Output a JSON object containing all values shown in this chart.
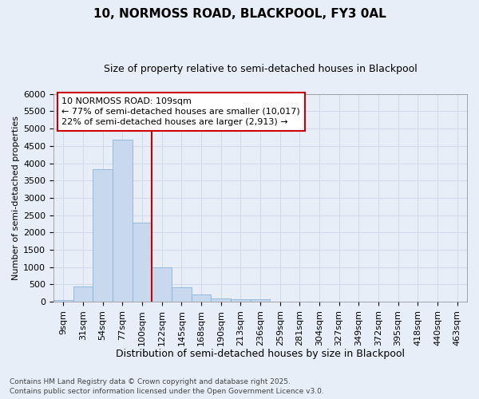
{
  "title1": "10, NORMOSS ROAD, BLACKPOOL, FY3 0AL",
  "title2": "Size of property relative to semi-detached houses in Blackpool",
  "xlabel": "Distribution of semi-detached houses by size in Blackpool",
  "ylabel": "Number of semi-detached properties",
  "categories": [
    "9sqm",
    "31sqm",
    "54sqm",
    "77sqm",
    "100sqm",
    "122sqm",
    "145sqm",
    "168sqm",
    "190sqm",
    "213sqm",
    "236sqm",
    "259sqm",
    "281sqm",
    "304sqm",
    "327sqm",
    "349sqm",
    "372sqm",
    "395sqm",
    "418sqm",
    "440sqm",
    "463sqm"
  ],
  "values": [
    50,
    430,
    3820,
    4670,
    2290,
    990,
    410,
    210,
    90,
    70,
    70,
    0,
    0,
    0,
    0,
    0,
    0,
    0,
    0,
    0,
    0
  ],
  "bar_color": "#c8d8ee",
  "bar_edge_color": "#8ab4d8",
  "grid_color": "#d0daea",
  "background_color": "#e8eef8",
  "vline_color": "#cc0000",
  "annotation_title": "10 NORMOSS ROAD: 109sqm",
  "annotation_line1": "← 77% of semi-detached houses are smaller (10,017)",
  "annotation_line2": "22% of semi-detached houses are larger (2,913) →",
  "annotation_box_color": "#cc0000",
  "footer1": "Contains HM Land Registry data © Crown copyright and database right 2025.",
  "footer2": "Contains public sector information licensed under the Open Government Licence v3.0.",
  "ylim": [
    0,
    6000
  ],
  "yticks": [
    0,
    500,
    1000,
    1500,
    2000,
    2500,
    3000,
    3500,
    4000,
    4500,
    5000,
    5500,
    6000
  ],
  "title1_fontsize": 11,
  "title2_fontsize": 9,
  "xlabel_fontsize": 9,
  "ylabel_fontsize": 8,
  "tick_fontsize": 8,
  "footer_fontsize": 6.5
}
